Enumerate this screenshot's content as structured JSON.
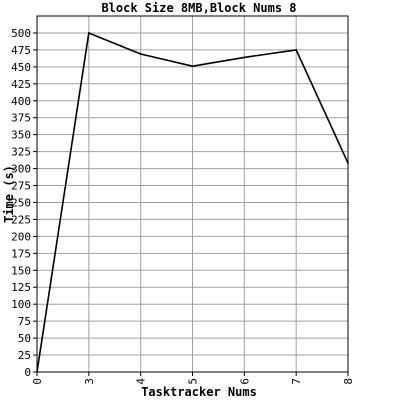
{
  "chart_data": {
    "type": "line",
    "title": "Block Size 8MB,Block Nums 8",
    "xlabel": "Tasktracker Nums",
    "ylabel": "Time (s)",
    "categories": [
      "0",
      "3",
      "4",
      "5",
      "6",
      "7",
      "8"
    ],
    "x": [
      0,
      3,
      4,
      5,
      6,
      7,
      8
    ],
    "series": [
      {
        "values": [
          0,
          500,
          469,
          451,
          464,
          475,
          308
        ]
      }
    ],
    "ylim": [
      0,
      525
    ],
    "yticks": [
      0,
      25,
      50,
      75,
      100,
      125,
      150,
      175,
      200,
      225,
      250,
      275,
      300,
      325,
      350,
      375,
      400,
      425,
      450,
      475,
      500
    ],
    "grid": true,
    "colors": {
      "line": "#000000",
      "grid": "#a0a0a0",
      "axis": "#000000"
    }
  }
}
